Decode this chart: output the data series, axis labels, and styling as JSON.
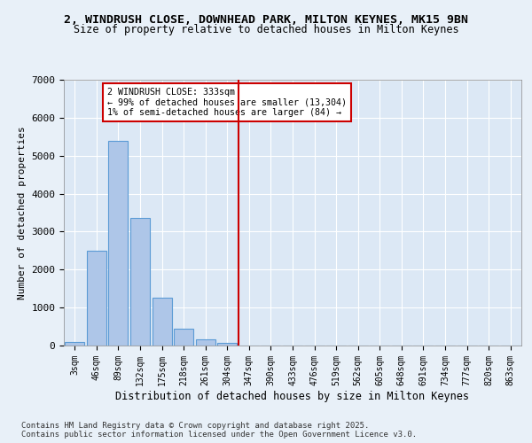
{
  "title_line1": "2, WINDRUSH CLOSE, DOWNHEAD PARK, MILTON KEYNES, MK15 9BN",
  "title_line2": "Size of property relative to detached houses in Milton Keynes",
  "xlabel": "Distribution of detached houses by size in Milton Keynes",
  "ylabel": "Number of detached properties",
  "bin_labels": [
    "3sqm",
    "46sqm",
    "89sqm",
    "132sqm",
    "175sqm",
    "218sqm",
    "261sqm",
    "304sqm",
    "347sqm",
    "390sqm",
    "433sqm",
    "476sqm",
    "519sqm",
    "562sqm",
    "605sqm",
    "648sqm",
    "691sqm",
    "734sqm",
    "777sqm",
    "820sqm",
    "863sqm"
  ],
  "bar_values": [
    100,
    2500,
    5400,
    3350,
    1250,
    450,
    175,
    75,
    0,
    0,
    0,
    0,
    0,
    0,
    0,
    0,
    0,
    0,
    0,
    0,
    0
  ],
  "bar_color": "#aec6e8",
  "bar_edge_color": "#5b9bd5",
  "vline_bin": 8,
  "vline_color": "#cc0000",
  "annotation_text": "2 WINDRUSH CLOSE: 333sqm\n← 99% of detached houses are smaller (13,304)\n1% of semi-detached houses are larger (84) →",
  "annotation_box_color": "#ffffff",
  "annotation_box_edge": "#cc0000",
  "ylim": [
    0,
    7000
  ],
  "yticks": [
    0,
    1000,
    2000,
    3000,
    4000,
    5000,
    6000,
    7000
  ],
  "footnote": "Contains HM Land Registry data © Crown copyright and database right 2025.\nContains public sector information licensed under the Open Government Licence v3.0.",
  "bg_color": "#e8f0f8",
  "plot_bg_color": "#dce8f5"
}
